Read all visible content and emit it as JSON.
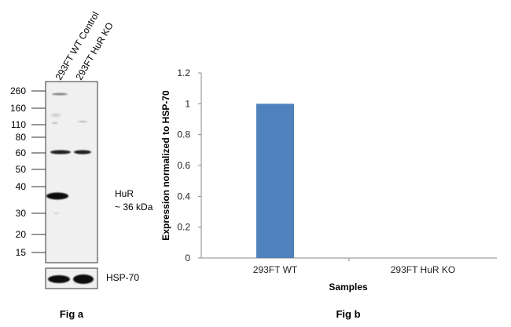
{
  "figure_a": {
    "lane_labels": [
      "293FT WT Control",
      "293FT HuR KO"
    ],
    "marker_labels": [
      "260",
      "160",
      "110",
      "80",
      "60",
      "50",
      "40",
      "30",
      "20",
      "15"
    ],
    "band_annotation": [
      "HuR",
      "~ 36 kDa"
    ],
    "loading_control_label": "HSP-70",
    "caption": "Fig a"
  },
  "chart_data": {
    "type": "bar",
    "categories": [
      "293FT WT",
      "293FT HuR KO"
    ],
    "values": [
      1,
      0
    ],
    "xlabel": "Samples",
    "ylabel": "Expression  normalized to HSP-70",
    "ylim": [
      0,
      1.2
    ],
    "yticks": [
      "0",
      "0.2",
      "0.4",
      "0.6",
      "0.8",
      "1",
      "1.2"
    ],
    "bar_color": "#4f81bd",
    "grid": false,
    "caption": "Fig b"
  }
}
